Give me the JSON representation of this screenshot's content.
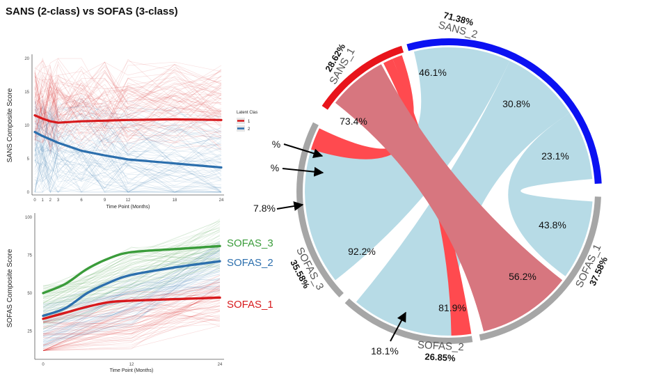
{
  "title": "SANS (2-class) vs SOFAS (3-class)",
  "colors": {
    "sans1": "#e8141b",
    "sans2": "#0b11f2",
    "sofas": "#a6a6a6",
    "ribbon_red": "#ff4a4f",
    "ribbon_blue": "#b7dbe6",
    "ribbon_cross": "#b79aa8",
    "traj_red": "#d7191c",
    "traj_blue": "#2c6fad",
    "traj_green": "#3a9c3a"
  },
  "chart_data": [
    {
      "type": "line",
      "id": "sans-trajectory",
      "xlabel": "Time Point (Months)",
      "ylabel": "SANS Composite Score",
      "x_ticks": [
        0,
        1,
        2,
        3,
        6,
        9,
        12,
        18,
        24
      ],
      "y_ticks": [
        0,
        5,
        10,
        15,
        20
      ],
      "xlim": [
        0,
        24
      ],
      "ylim": [
        0,
        20
      ],
      "legend_title": "Latent Class",
      "legend": [
        "1",
        "2"
      ],
      "series": [
        {
          "name": "1",
          "color": "#d7191c",
          "x": [
            0,
            1,
            2,
            3,
            6,
            9,
            12,
            18,
            24
          ],
          "y": [
            11.5,
            11.0,
            10.6,
            10.4,
            10.6,
            10.7,
            10.8,
            10.9,
            10.8
          ]
        },
        {
          "name": "2",
          "color": "#2c6fad",
          "x": [
            0,
            1,
            2,
            3,
            6,
            9,
            12,
            18,
            24
          ],
          "y": [
            9.0,
            8.4,
            7.9,
            7.4,
            6.2,
            5.5,
            4.9,
            4.3,
            3.7
          ]
        }
      ]
    },
    {
      "type": "line",
      "id": "sofas-trajectory",
      "xlabel": "Time Point (Months)",
      "ylabel": "SOFAS Composite Score",
      "x_ticks": [
        0,
        12,
        24
      ],
      "y_ticks": [
        25,
        50,
        75,
        100
      ],
      "xlim": [
        0,
        24
      ],
      "ylim": [
        10,
        100
      ],
      "series": [
        {
          "name": "SOFAS_3",
          "color": "#3a9c3a",
          "x": [
            0,
            3,
            6,
            9,
            12,
            18,
            24
          ],
          "y": [
            50,
            56,
            66,
            73,
            77,
            79,
            81
          ]
        },
        {
          "name": "SOFAS_2",
          "color": "#2c6fad",
          "x": [
            0,
            3,
            6,
            9,
            12,
            18,
            24
          ],
          "y": [
            35,
            40,
            50,
            57,
            62,
            67,
            71
          ]
        },
        {
          "name": "SOFAS_1",
          "color": "#d7191c",
          "x": [
            0,
            3,
            6,
            9,
            12,
            18,
            24
          ],
          "y": [
            33,
            37,
            41,
            44,
            45,
            46,
            47
          ]
        }
      ]
    },
    {
      "type": "chord",
      "id": "sans-sofas-chord",
      "sectors": [
        {
          "name": "SANS_1",
          "share": "28.62%",
          "color": "#e8141b"
        },
        {
          "name": "SANS_2",
          "share": "71.38%",
          "color": "#0b11f2"
        },
        {
          "name": "SOFAS_1",
          "share": "37.58%",
          "color": "#a6a6a6"
        },
        {
          "name": "SOFAS_2",
          "share": "26.85%",
          "color": "#a6a6a6"
        },
        {
          "name": "SOFAS_3",
          "share": "35.58%",
          "color": "#a6a6a6"
        }
      ],
      "flows": [
        {
          "from": "SANS_2",
          "to": "SOFAS_3",
          "pct_of_from": "46.1%",
          "pct_of_to": "92.2%"
        },
        {
          "from": "SANS_2",
          "to": "SOFAS_2",
          "pct_of_from": "30.8%",
          "pct_of_to": "81.9%"
        },
        {
          "from": "SANS_2",
          "to": "SOFAS_1",
          "pct_of_from": "23.1%",
          "pct_of_to": "43.8%"
        },
        {
          "from": "SANS_1",
          "to": "SOFAS_1",
          "pct_of_from": "73.4%",
          "pct_of_to": "56.2%"
        },
        {
          "from": "SANS_1",
          "to": "SOFAS_2",
          "pct_of_from": "",
          "pct_of_to": "18.1%"
        },
        {
          "from": "SANS_1",
          "to": "SOFAS_3",
          "pct_of_from": "",
          "pct_of_to": "7.8%"
        }
      ],
      "labels": {
        "s2_top": "46.1%",
        "s2_mid": "30.8%",
        "s2_low": "23.1%",
        "s1_big": "73.4%",
        "s1_clip1": "%",
        "s1_clip2": "%",
        "s1_clip3": "7.8%",
        "f3_big": "92.2%",
        "f2_big": "81.9%",
        "f1_red": "56.2%",
        "f1_blue": "43.8%",
        "f2_red": "18.1%"
      }
    }
  ]
}
